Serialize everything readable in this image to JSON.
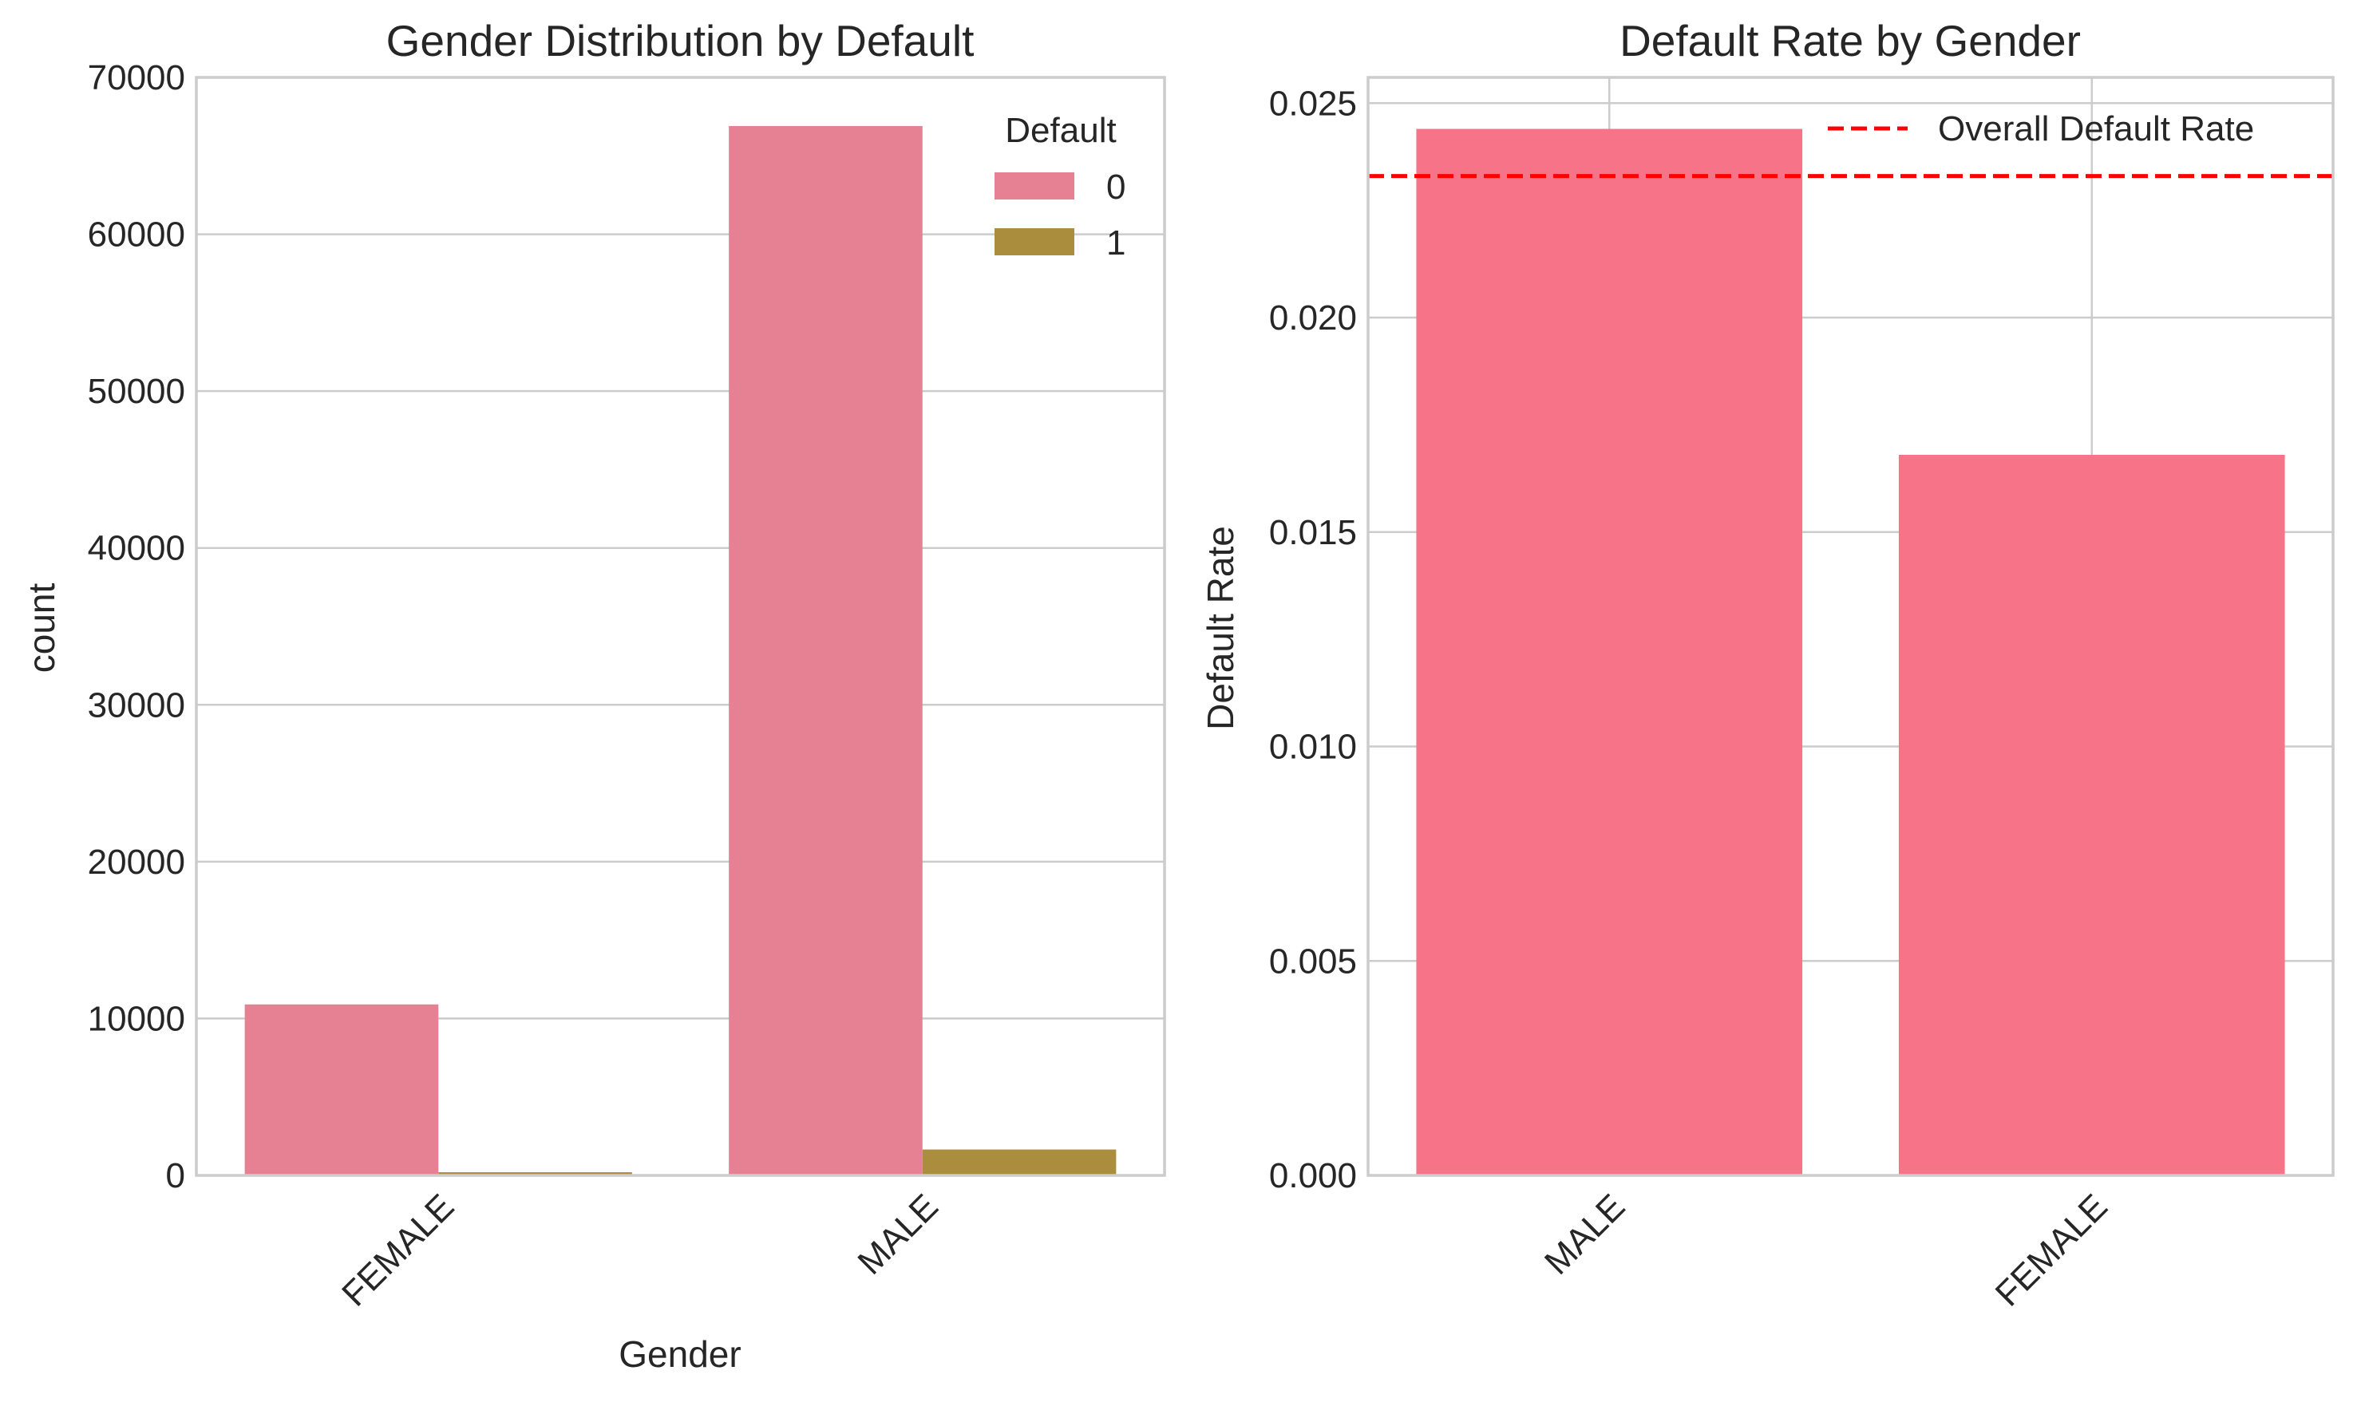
{
  "colors": {
    "series_0": "#e58192",
    "series_1": "#ab8d3e",
    "rate_bar": "#f67388",
    "overall_line": "#ff0000",
    "grid": "#cccccc",
    "text": "#262626"
  },
  "chart_data": [
    {
      "type": "bar",
      "title": "Gender Distribution by Default",
      "xlabel": "Gender",
      "ylabel": "count",
      "categories": [
        "FEMALE",
        "MALE"
      ],
      "series": [
        {
          "name": "0",
          "values": [
            10900,
            66900
          ]
        },
        {
          "name": "1",
          "values": [
            200,
            1650
          ]
        }
      ],
      "ylim": [
        0,
        70000
      ],
      "yticks": [
        0,
        10000,
        20000,
        30000,
        40000,
        50000,
        60000,
        70000
      ],
      "ytick_labels": [
        "0",
        "10000",
        "20000",
        "30000",
        "40000",
        "50000",
        "60000",
        "70000"
      ],
      "legend": {
        "title": "Default",
        "entries": [
          "0",
          "1"
        ],
        "placement": "top-right"
      },
      "grid": "horizontal",
      "xtick_rotation": 45
    },
    {
      "type": "bar",
      "title": "Default Rate by Gender",
      "xlabel": "",
      "ylabel": "Default Rate",
      "categories": [
        "MALE",
        "FEMALE"
      ],
      "values": [
        0.0244,
        0.0168
      ],
      "reference_line": {
        "name": "Overall Default Rate",
        "value": 0.0233,
        "style": "dashed"
      },
      "ylim": [
        0,
        0.0256
      ],
      "yticks": [
        0.0,
        0.005,
        0.01,
        0.015,
        0.02,
        0.025
      ],
      "ytick_labels": [
        "0.000",
        "0.005",
        "0.010",
        "0.015",
        "0.020",
        "0.025"
      ],
      "legend": {
        "entries": [
          "Overall Default Rate"
        ],
        "placement": "top-right"
      },
      "grid": "both",
      "xtick_rotation": 45
    }
  ]
}
